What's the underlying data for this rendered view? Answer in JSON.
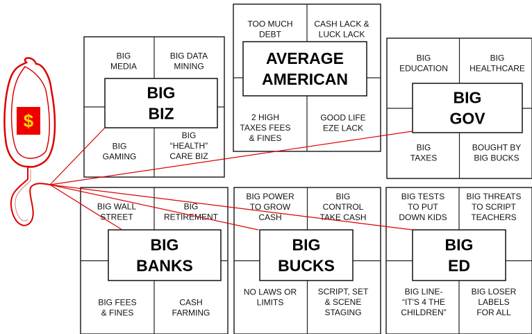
{
  "bag": {
    "label": "$"
  },
  "boxes": [
    {
      "title": [
        "BIG",
        "BIZ"
      ],
      "cells": [
        [
          "BIG",
          "MEDIA"
        ],
        [
          "BIG DATA",
          "MINING"
        ],
        [
          "BIG",
          "GAMING"
        ],
        [
          "BIG",
          "“HEALTH”",
          "CARE BIZ"
        ]
      ]
    },
    {
      "title": [
        "AVERAGE",
        "AMERICAN"
      ],
      "cells": [
        [
          "TOO MUCH",
          "DEBT"
        ],
        [
          "CASH LACK &",
          "LUCK LACK"
        ],
        [
          "2 HIGH",
          "TAXES FEES",
          "& FINES"
        ],
        [
          "GOOD LIFE",
          "EZE LACK"
        ]
      ]
    },
    {
      "title": [
        "BIG",
        "GOV"
      ],
      "cells": [
        [
          "BIG",
          "EDUCATION"
        ],
        [
          "BIG",
          "HEALTHCARE"
        ],
        [
          "BIG",
          "TAXES"
        ],
        [
          "BOUGHT BY",
          "BIG BUCKS"
        ]
      ]
    },
    {
      "title": [
        "BIG",
        "BANKS"
      ],
      "cells": [
        [
          "BIG WALL",
          "STREET"
        ],
        [
          "BIG",
          "RETIREMENT"
        ],
        [
          "BIG FEES",
          "& FINES"
        ],
        [
          "CASH",
          "FARMING"
        ]
      ]
    },
    {
      "title": [
        "BIG",
        "BUCKS"
      ],
      "cells": [
        [
          "BIG POWER",
          "TO GROW",
          "CASH"
        ],
        [
          "BIG",
          "CONTROL",
          "TAKE CASH"
        ],
        [
          "NO LAWS OR",
          "LIMITS"
        ],
        [
          "SCRIPT, SET",
          "& SCENE",
          "STAGING"
        ]
      ]
    },
    {
      "title": [
        "BIG",
        "ED"
      ],
      "cells": [
        [
          "BIG TESTS",
          "TO PUT",
          "DOWN KIDS"
        ],
        [
          "BIG THREATS",
          "TO SCRIPT",
          "TEACHERS"
        ],
        [
          "BIG LINE-",
          "“IT'S 4 THE",
          "CHILDREN”"
        ],
        [
          "BIG LOSER",
          "LABELS",
          "FOR ALL"
        ]
      ]
    }
  ]
}
